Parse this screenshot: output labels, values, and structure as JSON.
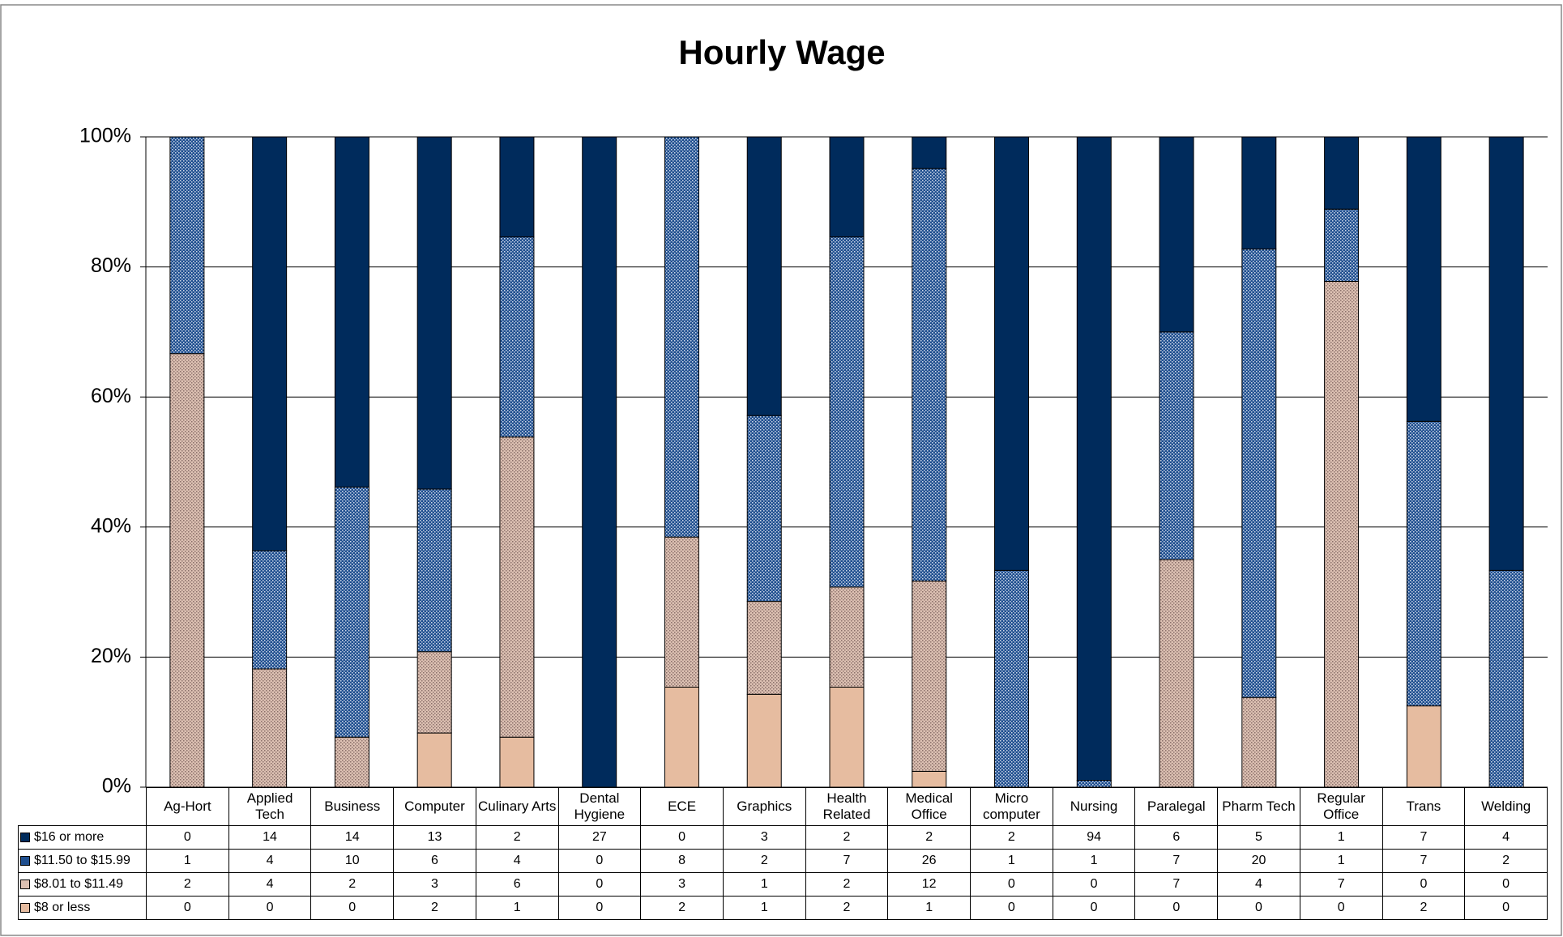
{
  "chart_data": {
    "type": "bar",
    "stacking": "percent",
    "title": "Hourly Wage",
    "categories": [
      "Ag-Hort",
      "Applied Tech",
      "Business",
      "Computer",
      "Culinary Arts",
      "Dental Hygiene",
      "ECE",
      "Graphics",
      "Health Related",
      "Medical Office",
      "Micro computer",
      "Nursing",
      "Paralegal",
      "Pharm Tech",
      "Regular Office",
      "Trans",
      "Welding"
    ],
    "series": [
      {
        "name": "$8 or less",
        "color": "#e6bca0",
        "values": [
          0,
          0,
          0,
          2,
          1,
          0,
          2,
          1,
          2,
          1,
          0,
          0,
          0,
          0,
          0,
          2,
          0
        ]
      },
      {
        "name": "$8.01 to $11.49",
        "color": "#dcc0b2",
        "pattern": "dots",
        "values": [
          2,
          4,
          2,
          3,
          6,
          0,
          3,
          1,
          2,
          12,
          0,
          0,
          7,
          4,
          7,
          0,
          0
        ]
      },
      {
        "name": "$11.50 to $15.99",
        "color": "#1f4f8f",
        "pattern": "dots",
        "values": [
          1,
          4,
          10,
          6,
          4,
          0,
          8,
          2,
          7,
          26,
          1,
          1,
          7,
          20,
          1,
          7,
          2
        ]
      },
      {
        "name": "$16 or more",
        "color": "#002b5c",
        "values": [
          0,
          14,
          14,
          13,
          2,
          27,
          0,
          3,
          2,
          2,
          2,
          94,
          6,
          5,
          1,
          7,
          4
        ]
      }
    ],
    "ylim": [
      0,
      100
    ],
    "yticks": [
      {
        "value": 0,
        "label": "0%"
      },
      {
        "value": 20,
        "label": "20%"
      },
      {
        "value": 40,
        "label": "40%"
      },
      {
        "value": 60,
        "label": "60%"
      },
      {
        "value": 80,
        "label": "80%"
      },
      {
        "value": 100,
        "label": "100%"
      }
    ],
    "grid": true
  }
}
